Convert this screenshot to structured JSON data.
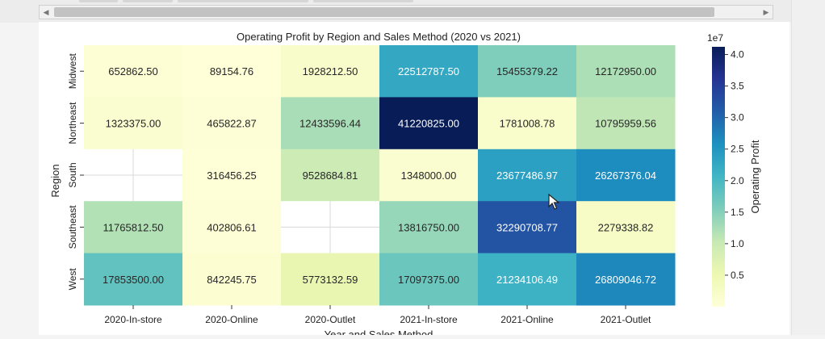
{
  "scrollbar": {
    "left_arrow_icon": "triangle-left-icon",
    "right_arrow_icon": "triangle-right-icon"
  },
  "chart_data": {
    "type": "heatmap",
    "title": "Operating Profit by Region and Sales Method (2020 vs 2021)",
    "xlabel": "Year and Sales Method",
    "ylabel": "Region",
    "x_categories": [
      "2020-In-store",
      "2020-Online",
      "2020-Outlet",
      "2021-In-store",
      "2021-Online",
      "2021-Outlet"
    ],
    "y_categories": [
      "Midwest",
      "Northeast",
      "South",
      "Southeast",
      "West"
    ],
    "values": [
      [
        652862.5,
        89154.76,
        1928212.5,
        22512787.5,
        15455379.22,
        12172950.0
      ],
      [
        1323375.0,
        465822.87,
        12433596.44,
        41220825.0,
        1781008.78,
        10795959.56
      ],
      [
        null,
        316456.25,
        9528684.81,
        1348000.0,
        23677486.97,
        26267376.04
      ],
      [
        11765812.5,
        402806.61,
        null,
        13816750.0,
        32290708.77,
        2279338.82
      ],
      [
        17853500.0,
        842245.75,
        5773132.59,
        17097375.0,
        21234106.49,
        26809046.72
      ]
    ],
    "annotations": [
      [
        "652862.50",
        "89154.76",
        "1928212.50",
        "22512787.50",
        "15455379.22",
        "12172950.00"
      ],
      [
        "1323375.00",
        "465822.87",
        "12433596.44",
        "41220825.00",
        "1781008.78",
        "10795959.56"
      ],
      [
        "",
        "316456.25",
        "9528684.81",
        "1348000.00",
        "23677486.97",
        "26267376.04"
      ],
      [
        "11765812.50",
        "402806.61",
        "",
        "13816750.00",
        "32290708.77",
        "2279338.82"
      ],
      [
        "17853500.00",
        "842245.75",
        "5773132.59",
        "17097375.00",
        "21234106.49",
        "26809046.72"
      ]
    ],
    "colormap": "YlGnBu",
    "colorbar": {
      "label": "Operating Profit",
      "multiplier": "1e7",
      "range": [
        0,
        41220825
      ],
      "ticks": [
        0.5,
        1.0,
        1.5,
        2.0,
        2.5,
        3.0,
        3.5,
        4.0
      ],
      "tick_labels": [
        "0.5",
        "1.0",
        "1.5",
        "2.0",
        "2.5",
        "3.0",
        "3.5",
        "4.0"
      ]
    },
    "missing_cell_color": "#ffffff"
  }
}
